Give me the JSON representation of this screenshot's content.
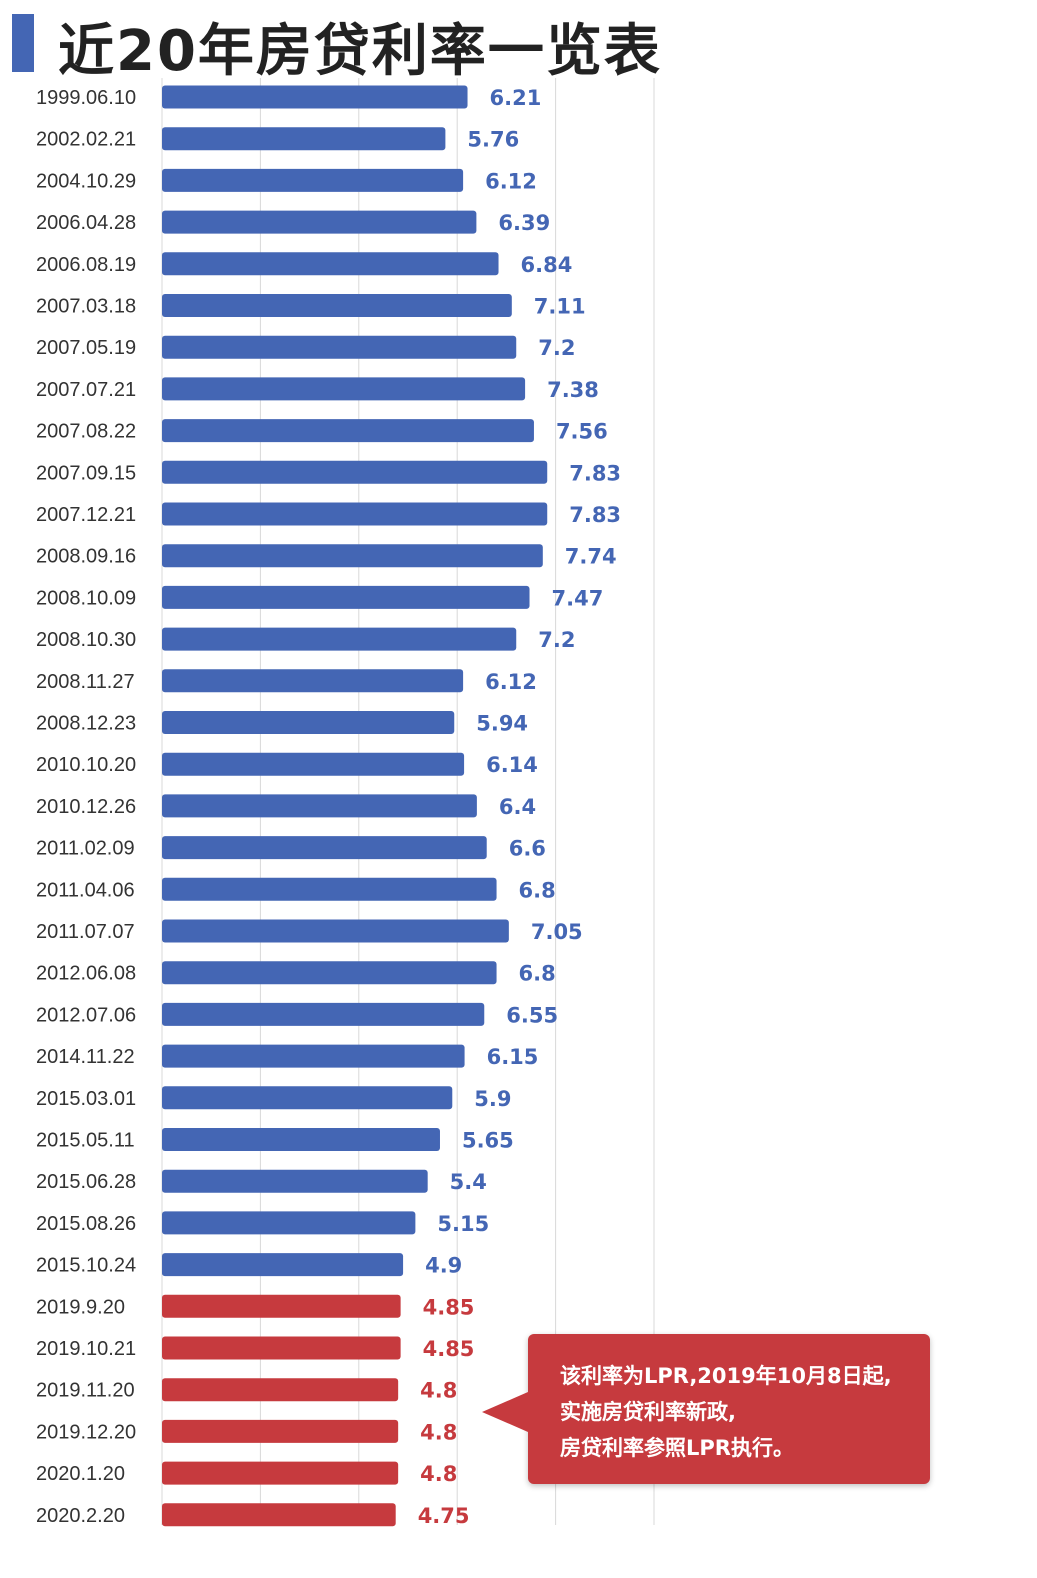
{
  "title": "近20年房贷利率一览表",
  "colors": {
    "accent": "#4466b4",
    "series_normal": "#4466b4",
    "series_lpr": "#c63a3e",
    "grid": "#d8d8d8",
    "label_normal": "#4466b4",
    "label_lpr": "#c63a3e"
  },
  "callout": {
    "lines": [
      "该利率为LPR,2019年10月8日起,",
      "实施房贷利率新政,",
      "房贷利率参照LPR执行。"
    ]
  },
  "chart_data": {
    "type": "bar",
    "orientation": "horizontal",
    "xlim": [
      0,
      10
    ],
    "grid": true,
    "legend": "none",
    "categories": [
      "1999.06.10",
      "2002.02.21",
      "2004.10.29",
      "2006.04.28",
      "2006.08.19",
      "2007.03.18",
      "2007.05.19",
      "2007.07.21",
      "2007.08.22",
      "2007.09.15",
      "2007.12.21",
      "2008.09.16",
      "2008.10.09",
      "2008.10.30",
      "2008.11.27",
      "2008.12.23",
      "2010.10.20",
      "2010.12.26",
      "2011.02.09",
      "2011.04.06",
      "2011.07.07",
      "2012.06.08",
      "2012.07.06",
      "2014.11.22",
      "2015.03.01",
      "2015.05.11",
      "2015.06.28",
      "2015.08.26",
      "2015.10.24",
      "2019.9.20",
      "2019.10.21",
      "2019.11.20",
      "2019.12.20",
      "2020.1.20",
      "2020.2.20"
    ],
    "values": [
      6.21,
      5.76,
      6.12,
      6.39,
      6.84,
      7.11,
      7.2,
      7.38,
      7.56,
      7.83,
      7.83,
      7.74,
      7.47,
      7.2,
      6.12,
      5.94,
      6.14,
      6.4,
      6.6,
      6.8,
      7.05,
      6.8,
      6.55,
      6.15,
      5.9,
      5.65,
      5.4,
      5.15,
      4.9,
      4.85,
      4.85,
      4.8,
      4.8,
      4.8,
      4.75
    ],
    "value_labels": [
      "6.21",
      "5.76",
      "6.12",
      "6.39",
      "6.84",
      "7.11",
      "7.2",
      "7.38",
      "7.56",
      "7.83",
      "7.83",
      "7.74",
      "7.47",
      "7.2",
      "6.12",
      "5.94",
      "6.14",
      "6.4",
      "6.6",
      "6.8",
      "7.05",
      "6.8",
      "6.55",
      "6.15",
      "5.9",
      "5.65",
      "5.4",
      "5.15",
      "4.9",
      "4.85",
      "4.85",
      "4.8",
      "4.8",
      "4.8",
      "4.75"
    ],
    "groups": [
      "benchmark",
      "benchmark",
      "benchmark",
      "benchmark",
      "benchmark",
      "benchmark",
      "benchmark",
      "benchmark",
      "benchmark",
      "benchmark",
      "benchmark",
      "benchmark",
      "benchmark",
      "benchmark",
      "benchmark",
      "benchmark",
      "benchmark",
      "benchmark",
      "benchmark",
      "benchmark",
      "benchmark",
      "benchmark",
      "benchmark",
      "benchmark",
      "benchmark",
      "benchmark",
      "benchmark",
      "benchmark",
      "benchmark",
      "lpr",
      "lpr",
      "lpr",
      "lpr",
      "lpr",
      "lpr"
    ]
  }
}
